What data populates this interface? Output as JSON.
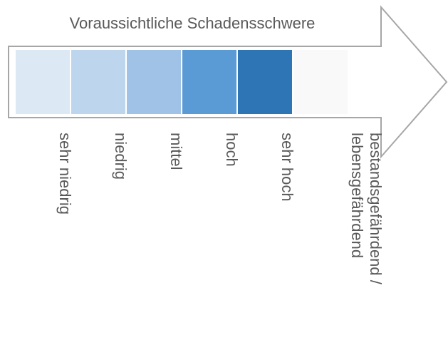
{
  "title": "Voraussichtliche Schadensschwere",
  "levels": [
    {
      "lines": [
        "sehr niedrig"
      ],
      "color": "#dde8f5"
    },
    {
      "lines": [
        "niedrig"
      ],
      "color": "#bed5ee"
    },
    {
      "lines": [
        "mittel"
      ],
      "color": "#9fc2e6"
    },
    {
      "lines": [
        "hoch"
      ],
      "color": "#5b9bd5"
    },
    {
      "lines": [
        "sehr hoch"
      ],
      "color": "#2e75b6"
    },
    {
      "lines": [
        "bestandsgefährdend /",
        "lebensgefährdend"
      ],
      "color": "#f9f9f9"
    }
  ]
}
